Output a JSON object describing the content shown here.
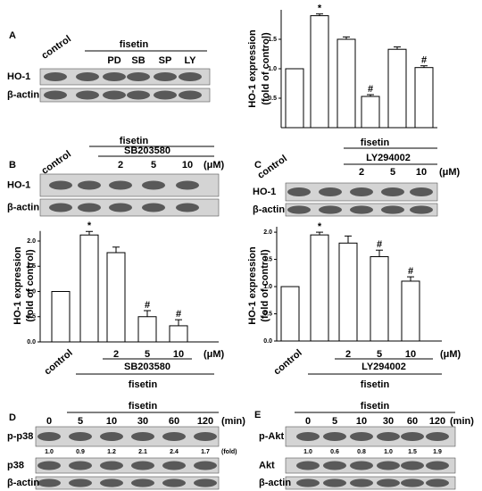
{
  "panels": [
    "A",
    "B",
    "C",
    "D",
    "E"
  ],
  "chart_data": [
    {
      "type": "bar",
      "values": [
        1.0,
        1.9,
        1.5,
        0.53,
        1.33,
        1.02
      ],
      "errors": [
        0,
        0.03,
        0.04,
        0.03,
        0.04,
        0.03
      ],
      "annotations": [
        null,
        "*",
        null,
        "#",
        null,
        "#"
      ],
      "ylabel": [
        "HO-1 expression",
        "(fold of control)"
      ],
      "ylim": [
        0,
        2
      ],
      "yticks": [
        0.5,
        {
          "value": 1,
          "label": "1.0"
        },
        1.5
      ],
      "color": "#ffffff"
    },
    {
      "type": "bar",
      "categories": [
        "control",
        null,
        "2",
        "5",
        "10"
      ],
      "values": [
        1.0,
        2.12,
        1.77,
        0.5,
        0.32
      ],
      "errors": [
        0,
        0.07,
        0.11,
        0.12,
        0.12
      ],
      "annotations": [
        null,
        "*",
        null,
        "#",
        "#"
      ],
      "ylabel": [
        "HO-1 expression",
        "(fold of control)"
      ],
      "ylim": [
        0,
        2.2
      ],
      "yticks": [
        {
          "value": 0,
          "label": "0.0"
        },
        0.5,
        {
          "value": 1,
          "label": "1.0"
        },
        1.5,
        {
          "value": 2,
          "label": "2.0"
        }
      ],
      "unit": "(μM)",
      "treatment": "SB203580",
      "group": "fisetin",
      "color": "#ffffff"
    },
    {
      "type": "bar",
      "categories": [
        "control",
        null,
        "2",
        "5",
        "10"
      ],
      "values": [
        1.0,
        1.95,
        1.8,
        1.55,
        1.1
      ],
      "errors": [
        0,
        0.05,
        0.13,
        0.12,
        0.08
      ],
      "annotations": [
        null,
        "*",
        null,
        "#",
        "#"
      ],
      "ylabel": [
        "HO-1 expression",
        "(fold of control)"
      ],
      "ylim": [
        0,
        2.1
      ],
      "yticks": [
        {
          "value": 0,
          "label": "0.0"
        },
        0.5,
        {
          "value": 1,
          "label": "1.0"
        },
        1.5,
        {
          "value": 2,
          "label": "2.0"
        }
      ],
      "unit": "(μM)",
      "treatment": "LY294002",
      "group": "fisetin",
      "color": "#ffffff"
    }
  ],
  "blots": [
    {
      "control": "control",
      "group": "fisetin",
      "lanes": [
        "PD",
        "SB",
        "SP",
        "LY"
      ],
      "rows": [
        "HO-1",
        "β-actin"
      ]
    },
    {
      "control": "control",
      "group": "fisetin",
      "treatment": "SB203580",
      "lanes": [
        "2",
        "5",
        "10"
      ],
      "unit": "(μM)",
      "rows": [
        "HO-1",
        "β-actin"
      ]
    },
    {
      "control": "control",
      "group": "fisetin",
      "treatment": "LY294002",
      "lanes": [
        "2",
        "5",
        "10"
      ],
      "unit": "(μM)",
      "rows": [
        "HO-1",
        "β-actin"
      ]
    },
    {
      "group": "fisetin",
      "lanes": [
        "0",
        "5",
        "10",
        "30",
        "60",
        "120"
      ],
      "unit": "(min)",
      "rows": [
        "p-p38",
        "p38",
        "β-actin"
      ],
      "folds": [
        "1.0",
        "0.9",
        "1.2",
        "2.1",
        "2.4",
        "1.7"
      ],
      "fold_unit": "(fold)"
    },
    {
      "group": "fisetin",
      "lanes": [
        "0",
        "5",
        "10",
        "30",
        "60",
        "120"
      ],
      "unit": "(min)",
      "rows": [
        "p-Akt",
        "Akt",
        "β-actin"
      ],
      "folds": [
        "1.0",
        "0.6",
        "0.8",
        "1.0",
        "1.5",
        "1.9"
      ]
    }
  ]
}
